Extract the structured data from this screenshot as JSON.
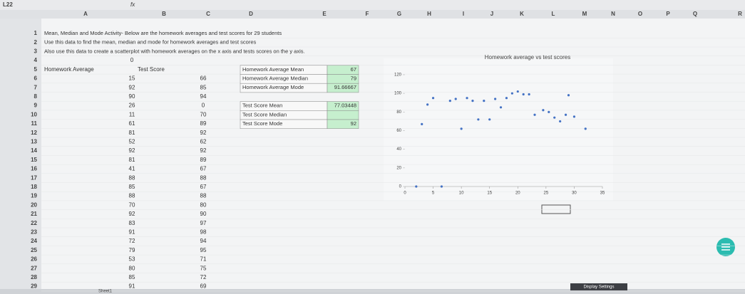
{
  "name_box": "L22",
  "function_label": "fx",
  "columns": [
    "A",
    "B",
    "C",
    "D",
    "E",
    "F",
    "G",
    "H",
    "I",
    "J",
    "K",
    "L",
    "M",
    "N",
    "O",
    "P",
    "Q",
    "R"
  ],
  "row_numbers": [
    1,
    2,
    3,
    4,
    5,
    6,
    7,
    8,
    9,
    10,
    11,
    12,
    13,
    14,
    15,
    16,
    17,
    18,
    19,
    20,
    21,
    22,
    23,
    24,
    25,
    26,
    27,
    28,
    29
  ],
  "notes": [
    "Mean, Median and Mode Activity- Below are the homework averages and test scores for 29 students",
    "Use this data to find the mean, median and mode for homework averages and test scores",
    "Also use this data to create a scatterplot with homework averages on the x axis and tests scores on the y axis."
  ],
  "cell_c4": 0,
  "headers": [
    "Homework Average",
    "Test Score"
  ],
  "homework": [
    15,
    92,
    90,
    26,
    11,
    61,
    81,
    52,
    92,
    81,
    41,
    88,
    85,
    88,
    70,
    92,
    83,
    91,
    72,
    79,
    53,
    80,
    85,
    91
  ],
  "test": [
    66,
    85,
    94,
    0,
    70,
    89,
    92,
    62,
    92,
    89,
    67,
    88,
    67,
    88,
    80,
    90,
    97,
    98,
    94,
    95,
    71,
    75,
    72,
    69
  ],
  "stats": [
    {
      "label": "Homework Average Mean",
      "value": 67
    },
    {
      "label": "Homework Average Median",
      "value": 79
    },
    {
      "label": "Homework Average Mode",
      "value": 91.66667
    },
    {
      "label": "Test Score Mean",
      "value": 77.03448
    },
    {
      "label": "Test Score Median",
      "value": null
    },
    {
      "label": "Test Score Mode",
      "value": 92
    }
  ],
  "chart_data": {
    "type": "scatter",
    "title": "Homework average vs test scores",
    "color": "#4472c4",
    "x": [
      2,
      6.5,
      3,
      4,
      5,
      8,
      9,
      10,
      11,
      12,
      13,
      14,
      15,
      16,
      17,
      18,
      19,
      20,
      21,
      22,
      23,
      24.5,
      25.5,
      26.5,
      27.5,
      28.5,
      29,
      30,
      32
    ],
    "y": [
      0,
      0,
      67,
      88,
      95,
      92,
      94,
      62,
      95,
      92,
      72,
      92,
      72,
      94,
      85,
      95,
      100,
      102,
      99,
      99,
      77,
      82,
      80,
      74,
      70,
      77,
      98,
      75,
      62
    ],
    "xlim": [
      0,
      35
    ],
    "ylim": [
      0,
      120
    ],
    "xticks": [
      0,
      5,
      10,
      15,
      20,
      25,
      30,
      35
    ],
    "yticks": [
      0,
      20,
      40,
      60,
      80,
      100,
      120
    ]
  },
  "sheet_tab": "Sheet1",
  "status_button": "Display Settings"
}
